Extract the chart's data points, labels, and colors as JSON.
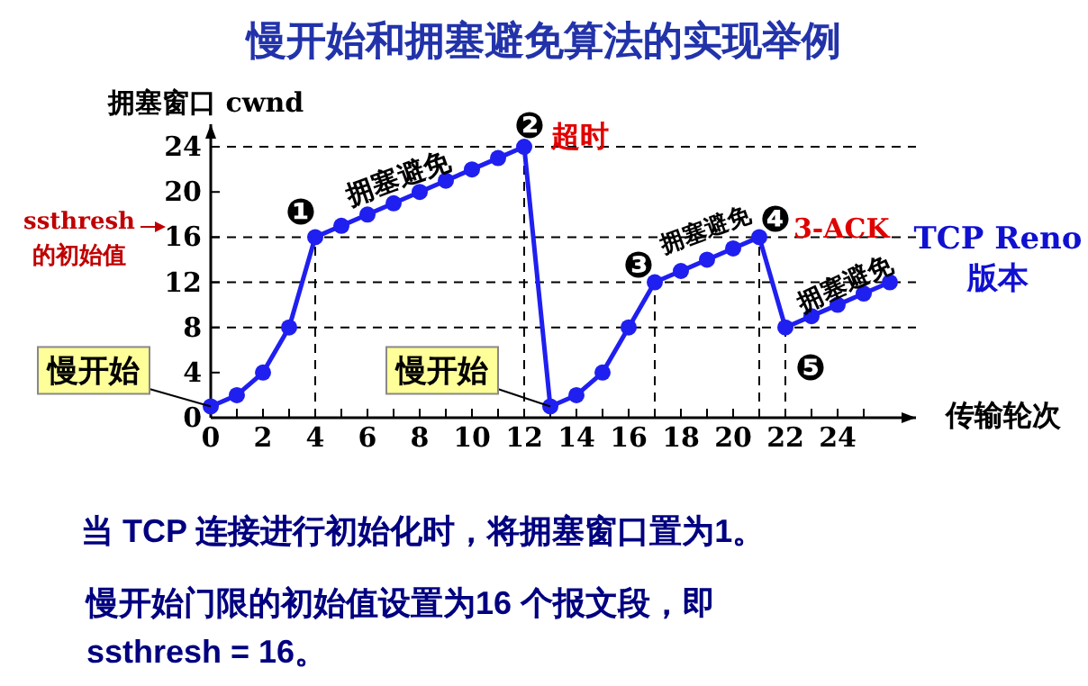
{
  "chart_data": {
    "type": "line",
    "title": "慢开始和拥塞避免算法的实现举例",
    "xlabel": "传输轮次",
    "ylabel": "拥塞窗口 cwnd",
    "x": [
      0,
      1,
      2,
      3,
      4,
      5,
      6,
      7,
      8,
      9,
      10,
      11,
      12,
      13,
      14,
      15,
      16,
      17,
      18,
      19,
      20,
      21,
      22,
      23,
      24,
      25,
      26
    ],
    "series": [
      {
        "color": "#1f1ff0",
        "values": [
          1,
          2,
          4,
          8,
          16,
          17,
          18,
          19,
          20,
          21,
          22,
          23,
          24,
          1,
          2,
          4,
          8,
          12,
          13,
          14,
          15,
          16,
          8,
          9,
          10,
          11,
          12
        ]
      }
    ],
    "marker": "circle",
    "line_style": "solid",
    "xlim": [
      0,
      27
    ],
    "ylim": [
      0,
      26
    ],
    "xticks": [
      0,
      {
        "value": 1,
        "label": null
      },
      2,
      {
        "value": 3,
        "label": null
      },
      4,
      {
        "value": 5,
        "label": null
      },
      6,
      {
        "value": 7,
        "label": null
      },
      8,
      {
        "value": 9,
        "label": null
      },
      10,
      {
        "value": 11,
        "label": null
      },
      12,
      {
        "value": 13,
        "label": null
      },
      14,
      {
        "value": 15,
        "label": null
      },
      16,
      {
        "value": 17,
        "label": null
      },
      18,
      {
        "value": 19,
        "label": null
      },
      20,
      {
        "value": 21,
        "label": null
      },
      22,
      {
        "value": 23,
        "label": null
      },
      24,
      {
        "value": 25,
        "label": null
      }
    ],
    "yticks": [
      0,
      4,
      8,
      12,
      16,
      20,
      24
    ],
    "ref_lines": [
      {
        "axis": "y",
        "value": 24,
        "color": "#000000",
        "line_style": "dashed"
      },
      {
        "axis": "y",
        "value": 16,
        "color": "#000000",
        "line_style": "dashed"
      },
      {
        "axis": "y",
        "value": 12,
        "color": "#000000",
        "line_style": "dashed"
      },
      {
        "axis": "y",
        "value": 8,
        "color": "#000000",
        "line_style": "dashed"
      },
      {
        "axis": "x",
        "value": 4,
        "color": "#000000",
        "line_style": "dashed"
      },
      {
        "axis": "x",
        "value": 12,
        "color": "#000000",
        "line_style": "dashed"
      },
      {
        "axis": "x",
        "value": 17,
        "color": "#000000",
        "line_style": "dashed"
      },
      {
        "axis": "x",
        "value": 21,
        "color": "#000000",
        "line_style": "dashed"
      },
      {
        "axis": "x",
        "value": 22,
        "color": "#000000",
        "line_style": "dashed"
      }
    ],
    "annotations": [
      {
        "text": "❶",
        "x": 4,
        "y": 16
      },
      {
        "text": "❷",
        "x": 12,
        "y": 24
      },
      {
        "text": "超时",
        "x": 12,
        "y": 24
      },
      {
        "text": "❸",
        "x": 17,
        "y": 12
      },
      {
        "text": "❹",
        "x": 21,
        "y": 16
      },
      {
        "text": "3-ACK",
        "x": 21,
        "y": 16
      },
      {
        "text": "❺",
        "x": 22,
        "y": 8
      },
      {
        "text": "拥塞避免",
        "x": 8,
        "y": 20
      },
      {
        "text": "拥塞避免",
        "x": 19,
        "y": 14
      },
      {
        "text": "拥塞避免",
        "x": 24,
        "y": 10
      },
      {
        "text": "慢开始",
        "x": 0,
        "y": 1
      },
      {
        "text": "慢开始",
        "x": 13,
        "y": 1
      },
      "ssthresh 的初始值",
      "TCP Reno 版本",
      "当 TCP 连接进行初始化时，将拥塞窗口置为1。",
      "慢开始门限的初始值设置为16 个报文段，即 ssthresh = 16。"
    ]
  }
}
